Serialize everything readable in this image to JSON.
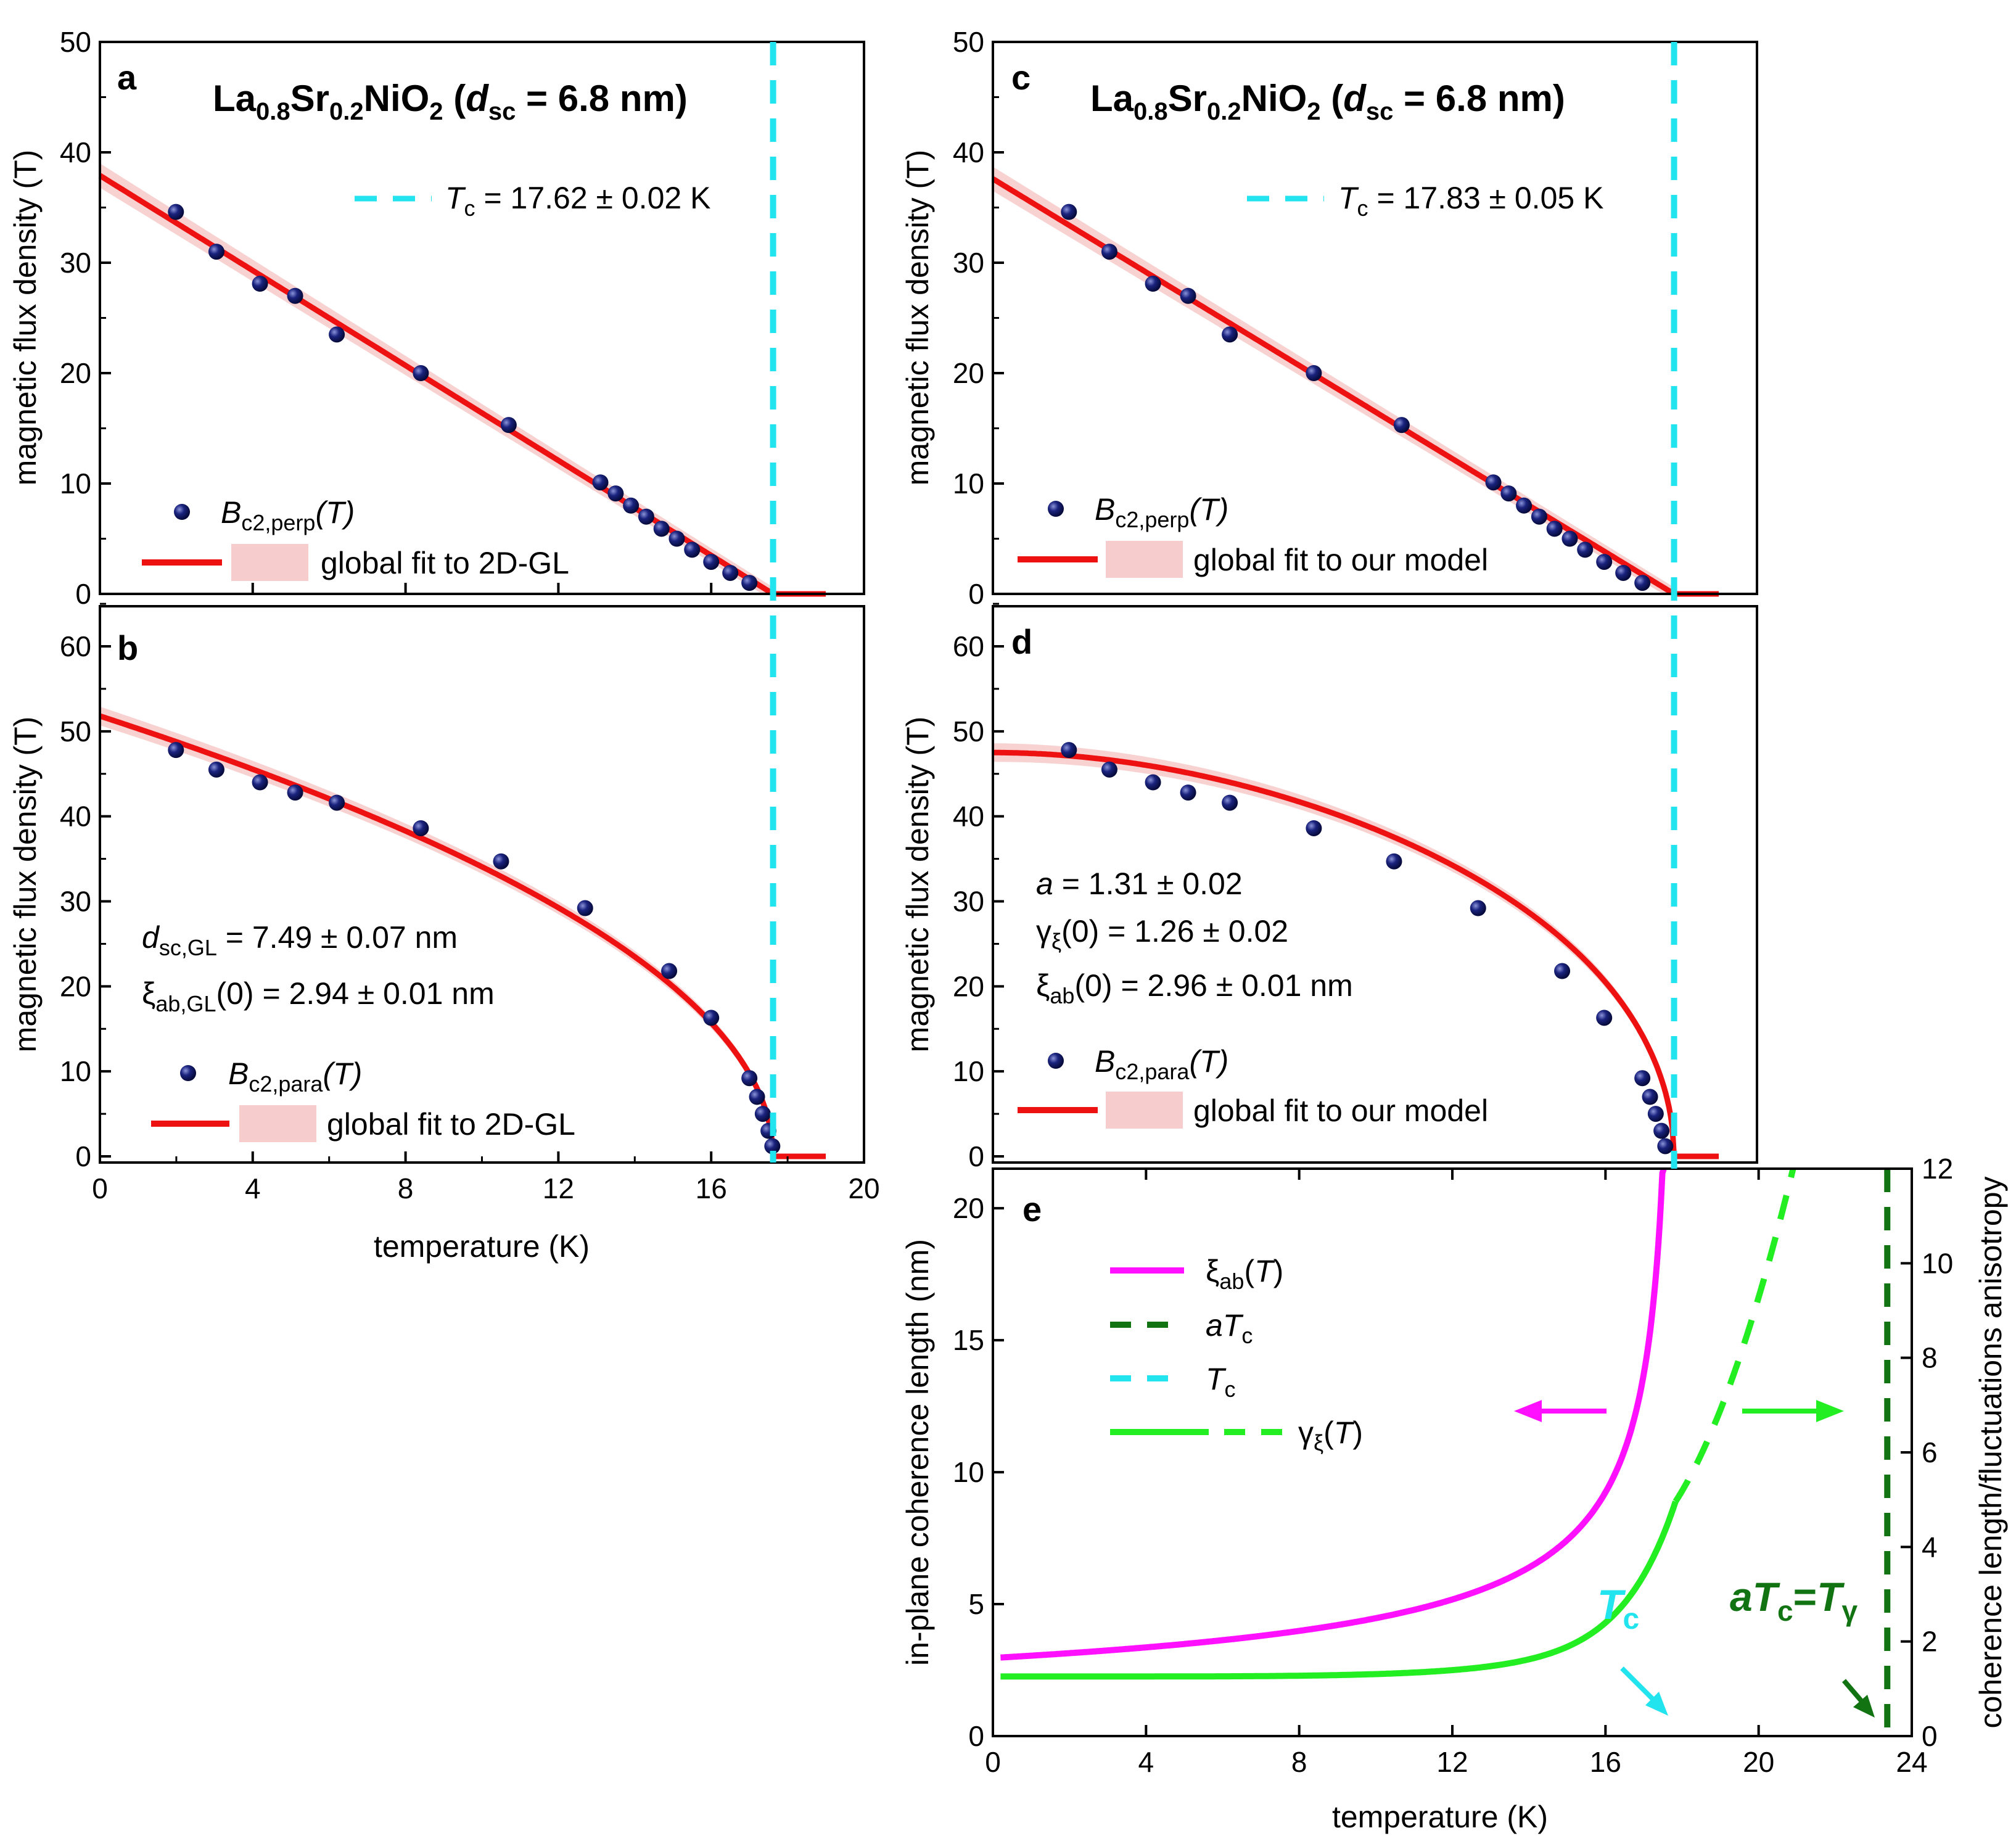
{
  "colors": {
    "fit": "#ee1111",
    "band": "#f7cccc",
    "point": "#1a237e",
    "tc": "#22e4ee",
    "xi": "#ff11ff",
    "gamma": "#22ee22",
    "atc": "#127312"
  },
  "chart_data": [
    {
      "panel": "a",
      "type": "scatter",
      "title_parts": {
        "la": "La",
        "la_sub": "0.8",
        "sr": "Sr",
        "sr_sub": "0.2",
        "nio": "NiO",
        "nio_sub": "2",
        "d": "d",
        "d_sub": "sc",
        "val": " = 6.8 nm)"
      },
      "ylabel": "magnetic flux density (T)",
      "xlim": [
        0,
        20
      ],
      "ylim": [
        0,
        50
      ],
      "yticks": [
        "0",
        "10",
        "20",
        "30",
        "40",
        "50"
      ],
      "tc_label": {
        "T": "T",
        "sub": "c",
        "rest": " = 17.62 ± 0.02 K"
      },
      "tc_value": 17.62,
      "legend_points": {
        "B": "B",
        "sub": "c2,perp",
        "rest": "(T)"
      },
      "legend_fit": "global fit to 2D-GL",
      "points": {
        "x": [
          1.99,
          3.05,
          4.19,
          5.11,
          6.2,
          8.4,
          10.7,
          13.1,
          13.5,
          13.9,
          14.3,
          14.7,
          15.1,
          15.5,
          16.0,
          16.5,
          17.0
        ],
        "y": [
          34.6,
          31.0,
          28.1,
          27.0,
          23.5,
          20.0,
          15.3,
          10.1,
          9.1,
          8.0,
          7.0,
          5.9,
          5.0,
          4.0,
          2.9,
          1.9,
          1.0
        ]
      },
      "fit": {
        "model": "linear",
        "y0": 37.9,
        "tc": 17.62
      }
    },
    {
      "panel": "b",
      "type": "scatter",
      "ylabel": "magnetic flux density (T)",
      "xlabel": "temperature (K)",
      "xlim": [
        0,
        20
      ],
      "ylim": [
        0,
        65
      ],
      "xticks": [
        "0",
        "4",
        "8",
        "12",
        "16",
        "20"
      ],
      "yticks": [
        "0",
        "10",
        "20",
        "30",
        "40",
        "50",
        "60"
      ],
      "annot1": {
        "d": "d",
        "sub": "sc,GL",
        "rest": " = 7.49 ± 0.07 nm"
      },
      "annot2": {
        "xi": "ξ",
        "sub": "ab,GL",
        "rest": "(0) = 2.94 ± 0.01 nm"
      },
      "legend_points": {
        "B": "B",
        "sub": "c2,para",
        "rest": "(T)"
      },
      "legend_fit": "global fit to 2D-GL",
      "points": {
        "x": [
          1.99,
          3.05,
          4.19,
          5.11,
          6.2,
          8.4,
          10.5,
          12.7,
          14.9,
          16.0,
          17.0,
          17.2,
          17.35,
          17.5,
          17.6
        ],
        "y": [
          47.8,
          45.5,
          44.0,
          42.8,
          41.6,
          38.6,
          34.7,
          29.2,
          21.8,
          16.3,
          9.2,
          7.0,
          5.0,
          3.0,
          1.2
        ]
      },
      "fit": {
        "model": "sqrt",
        "y0": 51.8,
        "tc": 17.62
      }
    },
    {
      "panel": "c",
      "type": "scatter",
      "title_parts": {
        "la": "La",
        "la_sub": "0.8",
        "sr": "Sr",
        "sr_sub": "0.2",
        "nio": "NiO",
        "nio_sub": "2",
        "d": "d",
        "d_sub": "sc",
        "val": " = 6.8 nm)"
      },
      "ylabel": "magnetic flux density (T)",
      "xlim": [
        0,
        20
      ],
      "ylim": [
        0,
        50
      ],
      "yticks": [
        "0",
        "10",
        "20",
        "30",
        "40",
        "50"
      ],
      "tc_label": {
        "T": "T",
        "sub": "c",
        "rest": " = 17.83 ± 0.05 K"
      },
      "tc_value": 17.83,
      "legend_points": {
        "B": "B",
        "sub": "c2,perp",
        "rest": "(T)"
      },
      "legend_fit": "global fit to our model",
      "points": {
        "x": [
          1.99,
          3.05,
          4.19,
          5.11,
          6.2,
          8.4,
          10.7,
          13.1,
          13.5,
          13.9,
          14.3,
          14.7,
          15.1,
          15.5,
          16.0,
          16.5,
          17.0
        ],
        "y": [
          34.6,
          31.0,
          28.1,
          27.0,
          23.5,
          20.0,
          15.3,
          10.1,
          9.1,
          8.0,
          7.0,
          5.9,
          5.0,
          4.0,
          2.9,
          1.9,
          1.0
        ]
      },
      "fit": {
        "model": "linear",
        "y0": 37.6,
        "tc": 17.83
      }
    },
    {
      "panel": "d",
      "type": "scatter",
      "ylabel": "magnetic flux density (T)",
      "xlim": [
        0,
        20
      ],
      "ylim": [
        0,
        65
      ],
      "yticks": [
        "0",
        "10",
        "20",
        "30",
        "40",
        "50",
        "60"
      ],
      "annot1": {
        "a": "a",
        "rest": " = 1.31 ± 0.02"
      },
      "annot2": {
        "g": "γ",
        "sub": "ξ",
        "rest": "(0) = 1.26 ± 0.02"
      },
      "annot3": {
        "xi": "ξ",
        "sub": "ab",
        "rest": "(0) = 2.96 ±  0.01 nm"
      },
      "legend_points": {
        "B": "B",
        "sub": "c2,para",
        "rest": "(T)"
      },
      "legend_fit": "global fit to our model",
      "points": {
        "x": [
          1.99,
          3.05,
          4.19,
          5.11,
          6.2,
          8.4,
          10.5,
          12.7,
          14.9,
          16.0,
          17.0,
          17.2,
          17.35,
          17.5,
          17.6
        ],
        "y": [
          47.8,
          45.5,
          44.0,
          42.8,
          41.6,
          38.6,
          34.7,
          29.2,
          21.8,
          16.3,
          9.2,
          7.0,
          5.0,
          3.0,
          1.2
        ]
      },
      "fit": {
        "model": "ourmodel",
        "y0": 47.5,
        "tc": 17.83
      }
    },
    {
      "panel": "e",
      "type": "line",
      "xlabel": "temperature (K)",
      "ylabel_left": "in-plane coherence length (nm)",
      "ylabel_right": "coherence length/fluctuations anisotropy",
      "xlim": [
        0,
        24
      ],
      "ylim_left": [
        0,
        21.5
      ],
      "ylim_right": [
        0,
        12
      ],
      "xticks": [
        "0",
        "4",
        "8",
        "12",
        "16",
        "20",
        "24"
      ],
      "yticks_left": [
        "0",
        "5",
        "10",
        "15",
        "20"
      ],
      "yticks_right": [
        "0",
        "2",
        "4",
        "6",
        "8",
        "10",
        "12"
      ],
      "legend": [
        {
          "sym": "ξ",
          "sub": "ab",
          "rest": "(",
          "it": "T",
          "tail": ")"
        },
        {
          "sym": "a",
          "it2": "T",
          "sub": "c"
        },
        {
          "sym": "T",
          "sub": "c"
        },
        {
          "sym": "γ",
          "sub": "ξ",
          "rest": "(",
          "it": "T",
          "tail": ")"
        }
      ],
      "tc_value": 17.83,
      "atc_value": 23.36,
      "tc_callout": {
        "T": "T",
        "sub": "c"
      },
      "atc_callout": {
        "a": "a",
        "T": "T",
        "sub": "c",
        "eq": "=",
        "T2": "T",
        "sub2": "γ"
      },
      "series": [
        {
          "name": "xi_ab",
          "axis": "left",
          "model": "xi0/sqrt(1-T/Tc)",
          "xi0": 2.96
        },
        {
          "name": "gamma_xi",
          "axis": "right",
          "model": "g0*sqrt((aTc-T)/(Tc-T)) scaled",
          "g0": 1.26
        }
      ]
    }
  ]
}
